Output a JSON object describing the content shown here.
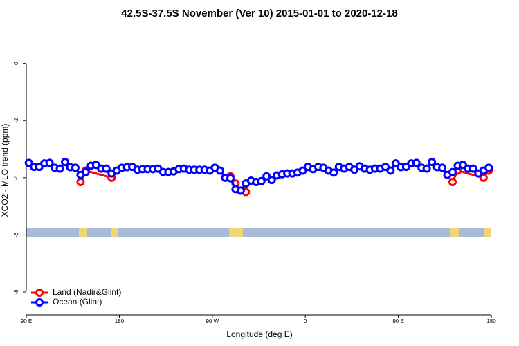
{
  "chart_data": {
    "type": "line",
    "title": "42.5S-37.5S November (Ver 10)   2015-01-01 to 2020-12-18",
    "xlabel": "Longitude (deg E)",
    "ylabel": "XCO2 - MLO trend (ppm)",
    "xlim": [
      90,
      540
    ],
    "ylim": [
      -8.8,
      1.3
    ],
    "xticks": [
      {
        "value": 90,
        "label": "90 E"
      },
      180,
      {
        "value": 270,
        "label": "90 W"
      },
      {
        "value": 360,
        "label": "0"
      },
      {
        "value": 450,
        "label": "90 E"
      },
      {
        "value": 540,
        "label": "180"
      }
    ],
    "yticks": [
      0,
      -2,
      -4,
      -6,
      -8
    ],
    "legend": "bottomleft",
    "series": [
      {
        "name": "Land (Nadir&Glint)",
        "color": "#ff0000",
        "x": [
          142.5,
          147.5,
          172.5,
          null,
          287.5,
          292.5,
          297.5,
          302.5,
          null,
          502.5,
          507.5,
          532.5,
          537.5
        ],
        "values": [
          -4.15,
          -3.75,
          -4.0,
          null,
          -3.95,
          -4.2,
          -4.45,
          -4.5,
          null,
          -4.15,
          -3.75,
          -4.0,
          -3.75
        ]
      },
      {
        "name": "Ocean (Glint)",
        "color": "#0000ff",
        "x": [
          92.5,
          97.5,
          102.5,
          107.5,
          112.5,
          117.5,
          122.5,
          127.5,
          132.5,
          137.5,
          142.5,
          147.5,
          152.5,
          157.5,
          162.5,
          167.5,
          172.5,
          177.5,
          182.5,
          187.5,
          192.5,
          197.5,
          202.5,
          207.5,
          212.5,
          217.5,
          222.5,
          227.5,
          232.5,
          237.5,
          242.5,
          247.5,
          252.5,
          257.5,
          262.5,
          267.5,
          272.5,
          277.5,
          282.5,
          287.5,
          292.5,
          297.5,
          302.5,
          307.5,
          312.5,
          317.5,
          322.5,
          327.5,
          332.5,
          337.5,
          342.5,
          347.5,
          352.5,
          357.5,
          362.5,
          367.5,
          372.5,
          377.5,
          382.5,
          387.5,
          392.5,
          397.5,
          402.5,
          407.5,
          412.5,
          417.5,
          422.5,
          427.5,
          432.5,
          437.5,
          442.5,
          447.5,
          452.5,
          457.5,
          462.5,
          467.5,
          472.5,
          477.5,
          482.5,
          487.5,
          492.5,
          497.5,
          502.5,
          507.5,
          512.5,
          517.5,
          522.5,
          527.5,
          532.5,
          537.5
        ],
        "values": [
          -3.48,
          -3.62,
          -3.62,
          -3.5,
          -3.48,
          -3.65,
          -3.68,
          -3.45,
          -3.63,
          -3.65,
          -3.9,
          -3.8,
          -3.58,
          -3.55,
          -3.68,
          -3.68,
          -3.85,
          -3.75,
          -3.65,
          -3.63,
          -3.62,
          -3.72,
          -3.7,
          -3.7,
          -3.7,
          -3.68,
          -3.8,
          -3.8,
          -3.78,
          -3.7,
          -3.68,
          -3.72,
          -3.72,
          -3.72,
          -3.72,
          -3.75,
          -3.65,
          -3.75,
          -4.0,
          -4.02,
          -4.4,
          -4.45,
          -4.2,
          -4.1,
          -4.15,
          -4.12,
          -3.95,
          -4.08,
          -3.92,
          -3.88,
          -3.85,
          -3.85,
          -3.82,
          -3.75,
          -3.62,
          -3.7,
          -3.62,
          -3.65,
          -3.75,
          -3.82,
          -3.62,
          -3.68,
          -3.62,
          -3.72,
          -3.6,
          -3.68,
          -3.72,
          -3.68,
          -3.68,
          -3.62,
          -3.75,
          -3.5,
          -3.63,
          -3.62,
          -3.5,
          -3.48,
          -3.65,
          -3.68,
          -3.45,
          -3.63,
          -3.65,
          -3.9,
          -3.8,
          -3.58,
          -3.55,
          -3.68,
          -3.68,
          -3.85,
          -3.75,
          -3.65
        ]
      }
    ]
  }
}
